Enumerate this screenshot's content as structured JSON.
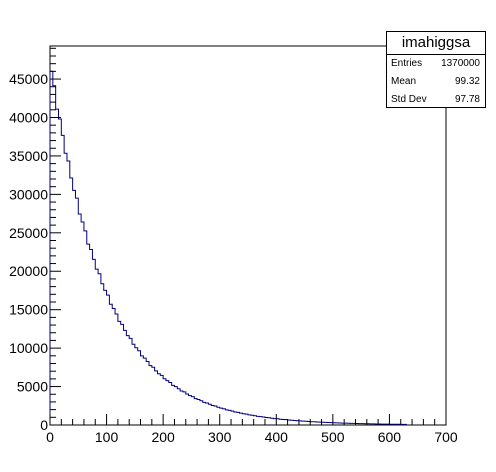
{
  "chart_data": {
    "type": "histogram",
    "histogram_name": "imahiggsa",
    "stats": [
      {
        "label": "Entries",
        "value": "1370000"
      },
      {
        "label": "Mean",
        "value": "99.32"
      },
      {
        "label": "Std Dev",
        "value": "97.78"
      }
    ],
    "xlim": [
      0,
      700
    ],
    "ylim": [
      0,
      49300
    ],
    "x_ticks": [
      "0",
      "100",
      "200",
      "300",
      "400",
      "500",
      "600",
      "700"
    ],
    "y_ticks": [
      "0",
      "5000",
      "10000",
      "15000",
      "20000",
      "25000",
      "30000",
      "35000",
      "40000",
      "45000"
    ],
    "bin_width": 5,
    "bin_start": 0,
    "bin_count": 126,
    "model": {
      "amplitude": 47200,
      "decay_length": 98.7
    },
    "line_color": "#000080",
    "grid": false,
    "legend": "stats box top-right"
  }
}
